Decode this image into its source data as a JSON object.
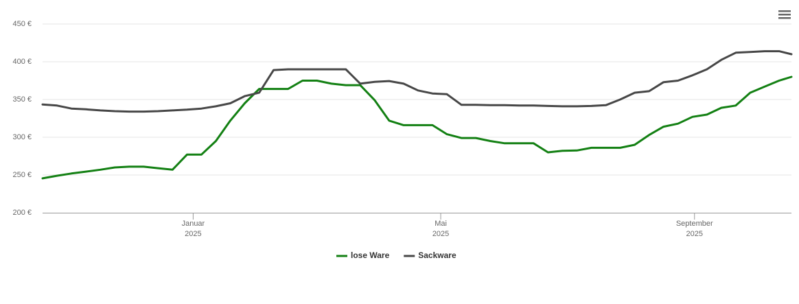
{
  "chart_data": {
    "type": "line",
    "x": [
      "2024-10-20",
      "2024-10-27",
      "2024-11-03",
      "2024-11-10",
      "2024-11-17",
      "2024-11-24",
      "2024-12-01",
      "2024-12-08",
      "2024-12-15",
      "2024-12-22",
      "2024-12-29",
      "2025-01-05",
      "2025-01-12",
      "2025-01-19",
      "2025-01-26",
      "2025-02-02",
      "2025-02-09",
      "2025-02-16",
      "2025-02-23",
      "2025-03-02",
      "2025-03-09",
      "2025-03-16",
      "2025-03-23",
      "2025-03-30",
      "2025-04-06",
      "2025-04-13",
      "2025-04-20",
      "2025-04-27",
      "2025-05-04",
      "2025-05-11",
      "2025-05-18",
      "2025-05-25",
      "2025-06-01",
      "2025-06-08",
      "2025-06-15",
      "2025-06-22",
      "2025-06-29",
      "2025-07-06",
      "2025-07-13",
      "2025-07-20",
      "2025-07-27",
      "2025-08-03",
      "2025-08-10",
      "2025-08-17",
      "2025-08-24",
      "2025-08-31",
      "2025-09-07",
      "2025-09-14",
      "2025-09-21",
      "2025-09-28",
      "2025-10-05",
      "2025-10-12",
      "2025-10-18"
    ],
    "series": [
      {
        "name": "lose Ware",
        "color": "#138013",
        "values": [
          245.5,
          249,
          252,
          254.5,
          257,
          260,
          261,
          261,
          259,
          257,
          277,
          277,
          295,
          322,
          345,
          364,
          364,
          364,
          375,
          375,
          371,
          369,
          369,
          349,
          322,
          316,
          316,
          316,
          304,
          299,
          299,
          295,
          292,
          292,
          292,
          280,
          282,
          282.5,
          286,
          286,
          286,
          290,
          303,
          314,
          318,
          327,
          330,
          339,
          342,
          359,
          367,
          375,
          380
        ]
      },
      {
        "name": "Sackware",
        "color": "#474747",
        "values": [
          343.5,
          342,
          338,
          337,
          335.5,
          334.5,
          334,
          334,
          334.5,
          335.5,
          336.5,
          338,
          341,
          345,
          354.5,
          359,
          389,
          390,
          390,
          390,
          390,
          390,
          371,
          373.5,
          374.5,
          371,
          362,
          358,
          357,
          343,
          343,
          342.5,
          342.5,
          342,
          342,
          341.5,
          341,
          341,
          341.5,
          342.5,
          350,
          359,
          361,
          373,
          375,
          382,
          390,
          402.5,
          412,
          413,
          414,
          414,
          410
        ]
      }
    ],
    "xlim": [
      "2024-10-20",
      "2025-10-18"
    ],
    "xticks": [
      {
        "value": "2025-01-01",
        "label": [
          "Januar",
          "2025"
        ]
      },
      {
        "value": "2025-05-01",
        "label": [
          "Mai",
          "2025"
        ]
      },
      {
        "value": "2025-09-01",
        "label": [
          "September",
          "2025"
        ]
      }
    ],
    "ylim": [
      200,
      450
    ],
    "yticks": [
      {
        "value": 200,
        "label": "200 €"
      },
      {
        "value": 250,
        "label": "250 €"
      },
      {
        "value": 300,
        "label": "300 €"
      },
      {
        "value": 350,
        "label": "350 €"
      },
      {
        "value": 400,
        "label": "400 €"
      },
      {
        "value": 450,
        "label": "450 €"
      }
    ],
    "grid": true,
    "legend": "bottom"
  }
}
